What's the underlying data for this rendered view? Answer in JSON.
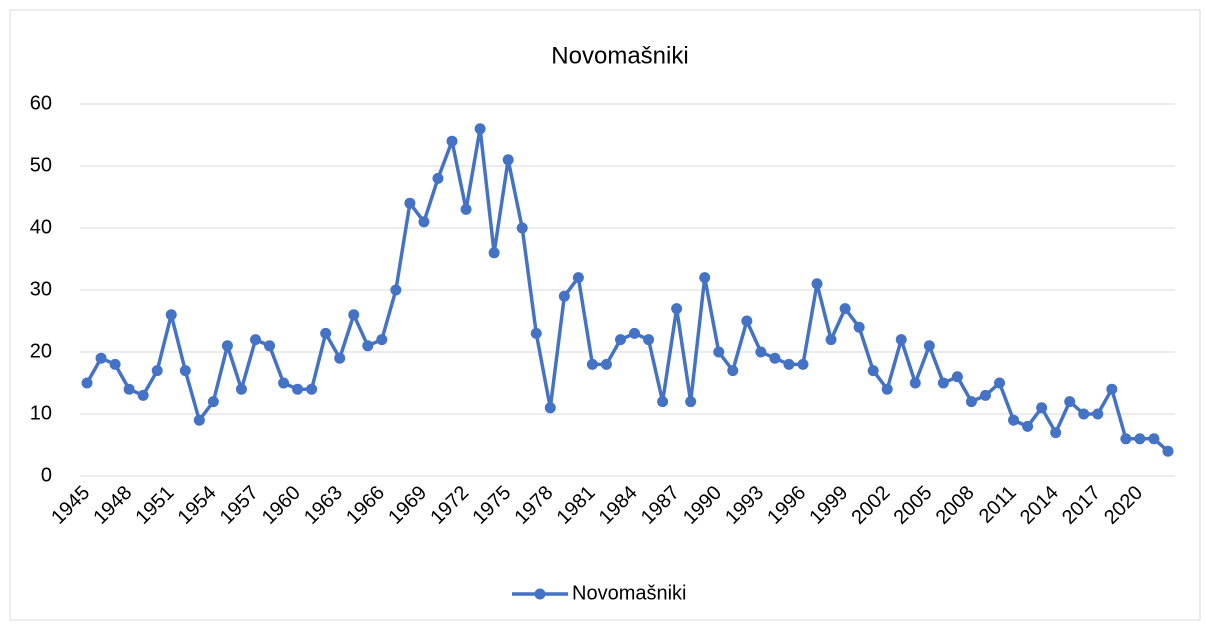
{
  "chart_data": {
    "type": "line",
    "title": "Novomašniki",
    "categories": [
      "1945",
      null,
      null,
      "1948",
      null,
      null,
      "1951",
      null,
      null,
      "1954",
      null,
      null,
      "1957",
      null,
      null,
      "1960",
      null,
      null,
      "1963",
      null,
      null,
      "1966",
      null,
      null,
      "1969",
      null,
      null,
      "1972",
      null,
      null,
      "1975",
      null,
      null,
      "1978",
      null,
      null,
      "1981",
      null,
      null,
      "1984",
      null,
      null,
      "1987",
      null,
      null,
      "1990",
      null,
      null,
      "1993",
      null,
      null,
      "1996",
      null,
      null,
      "1999",
      null,
      null,
      "2002",
      null,
      null,
      "2005",
      null,
      null,
      "2008",
      null,
      null,
      "2011",
      null,
      null,
      "2014",
      null,
      null,
      "2017",
      null,
      null,
      "2020",
      null,
      null
    ],
    "series": [
      {
        "name": "Novomašniki",
        "color": "#4472c4",
        "values": [
          15,
          19,
          18,
          14,
          13,
          17,
          26,
          17,
          9,
          12,
          21,
          14,
          22,
          21,
          15,
          14,
          14,
          23,
          19,
          26,
          21,
          22,
          30,
          44,
          41,
          48,
          54,
          43,
          56,
          36,
          51,
          40,
          23,
          11,
          29,
          32,
          18,
          18,
          22,
          23,
          22,
          12,
          27,
          12,
          32,
          20,
          17,
          25,
          20,
          19,
          18,
          18,
          31,
          22,
          27,
          24,
          17,
          14,
          22,
          15,
          21,
          15,
          16,
          12,
          13,
          15,
          9,
          8,
          11,
          7,
          12,
          10,
          10,
          14,
          6,
          6,
          6,
          4
        ]
      }
    ],
    "ylim": [
      0,
      60
    ],
    "yticks": [
      0,
      10,
      20,
      30,
      40,
      50,
      60
    ],
    "grid": true,
    "legend": "bottom"
  }
}
